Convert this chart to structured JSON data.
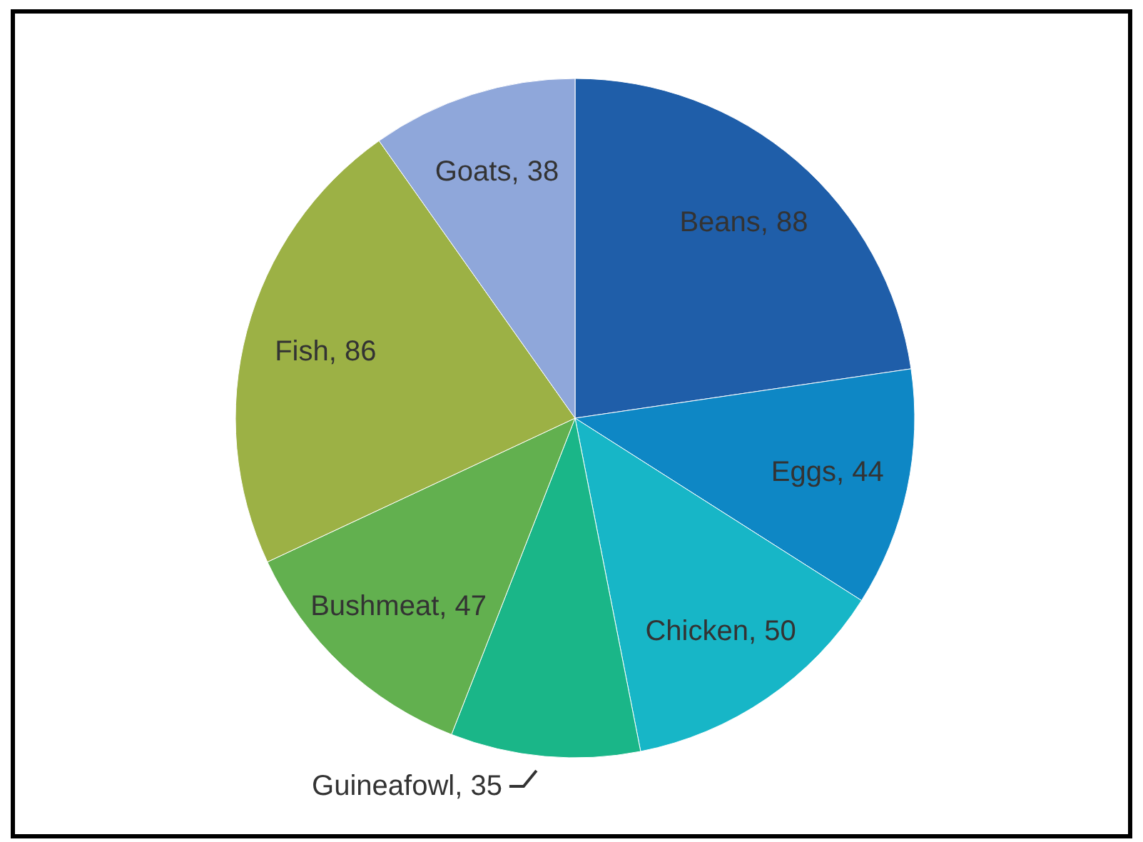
{
  "chart_data": {
    "type": "pie",
    "categories": [
      "Beans",
      "Eggs",
      "Chicken",
      "Guineafowl",
      "Bushmeat",
      "Fish",
      "Goats"
    ],
    "values": [
      88,
      44,
      50,
      35,
      47,
      86,
      38
    ],
    "value_labels": [
      ", 88",
      ", 44",
      ", 50",
      ", 35",
      ", 47",
      ", 86",
      ", 38"
    ],
    "colors": [
      "#1f5ea9",
      "#0e87c5",
      "#17b6c7",
      "#1ab688",
      "#62b04f",
      "#9cb145",
      "#8fa7da"
    ]
  }
}
